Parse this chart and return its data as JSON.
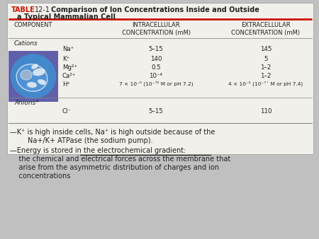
{
  "title_table": "TABLE",
  "title_number": "12-1",
  "title_main": "Comparison of Ion Concentrations Inside and Outside",
  "title_sub": "a Typical Mammalian Cell",
  "col1_header": "COMPONENT",
  "col2_header": "INTRACELLULAR\nCONCENTRATION (mM)",
  "col3_header": "EXTRACELLULAR\nCONCENTRATION (mM)",
  "section_cations": "Cations",
  "section_anions": "Anions*",
  "ion_labels": [
    "Na⁺",
    "K⁺",
    "Mg²⁺",
    "Ca²⁺",
    "H⁺",
    "Cl⁻"
  ],
  "intracellular": [
    "5–15",
    "140",
    "0.5",
    "10⁻⁴",
    "7 × 10⁻⁵ (10⁻⁷² M or pH 7.2)",
    "5–15"
  ],
  "extracellular": [
    "145",
    "5",
    "1–2",
    "1–2",
    "4 × 10⁻⁵ (10⁻⁷´ M or pH 7.4)",
    "110"
  ],
  "bullet1_line1": "—K⁺ is high inside cells, Na⁺ is high outside because of the",
  "bullet1_line2": "        Na+/K+ ATPase (the sodium pump).",
  "bullet2_line1": "—Energy is stored in the electrochemical gradient:",
  "bullet2_line2": "    the chemical and electrical forces across the membrane that",
  "bullet2_line3": "    arise from the asymmetric distribution of charges and ion",
  "bullet2_line4": "    concentrations",
  "bg_color": "#c0c0c0",
  "table_bg": "#f2f0eb",
  "header_red": "#cc1100",
  "red_line_color": "#cc1100",
  "cell_box_bg": "#6060aa",
  "cell_oval_bg": "#4488cc",
  "text_color": "#222222",
  "table_border": "#aaaaaa",
  "line_color": "#888888"
}
